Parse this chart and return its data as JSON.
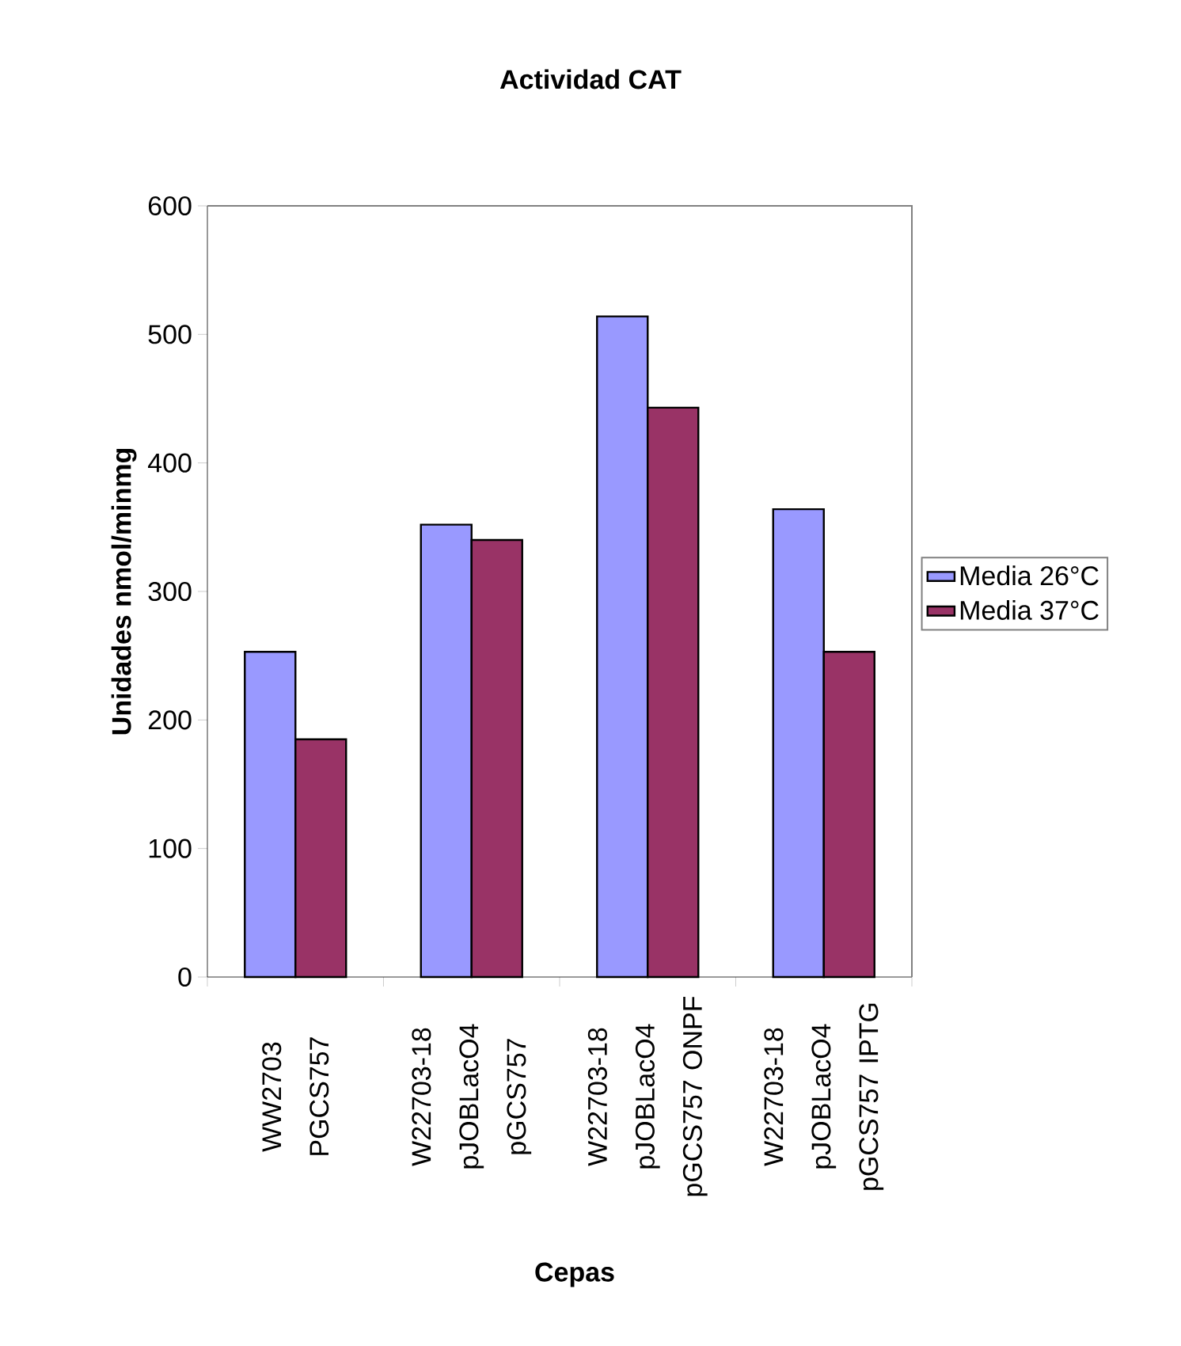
{
  "chart_data": {
    "type": "bar",
    "title": "Actividad CAT",
    "xlabel": "Cepas",
    "ylabel": "Unidades nmol/minmg",
    "categories": [
      "WW2703 PGCS757",
      "W22703-18 pJOBLacO4 pGCS757",
      "W22703-18 pJOBLacO4 pGCS757 ONPF",
      "W22703-18 pJOBLacO4 pGCS757 IPTG"
    ],
    "series": [
      {
        "name": "Media  26°C",
        "color": "#9999ff",
        "values": [
          253,
          352,
          514,
          364
        ]
      },
      {
        "name": "Media 37°C",
        "color": "#993366",
        "values": [
          185,
          340,
          443,
          253
        ]
      }
    ],
    "ylim": [
      0,
      600
    ],
    "yticks": [
      0,
      100,
      200,
      300,
      400,
      500,
      600
    ],
    "grid": false,
    "legend": "right"
  }
}
